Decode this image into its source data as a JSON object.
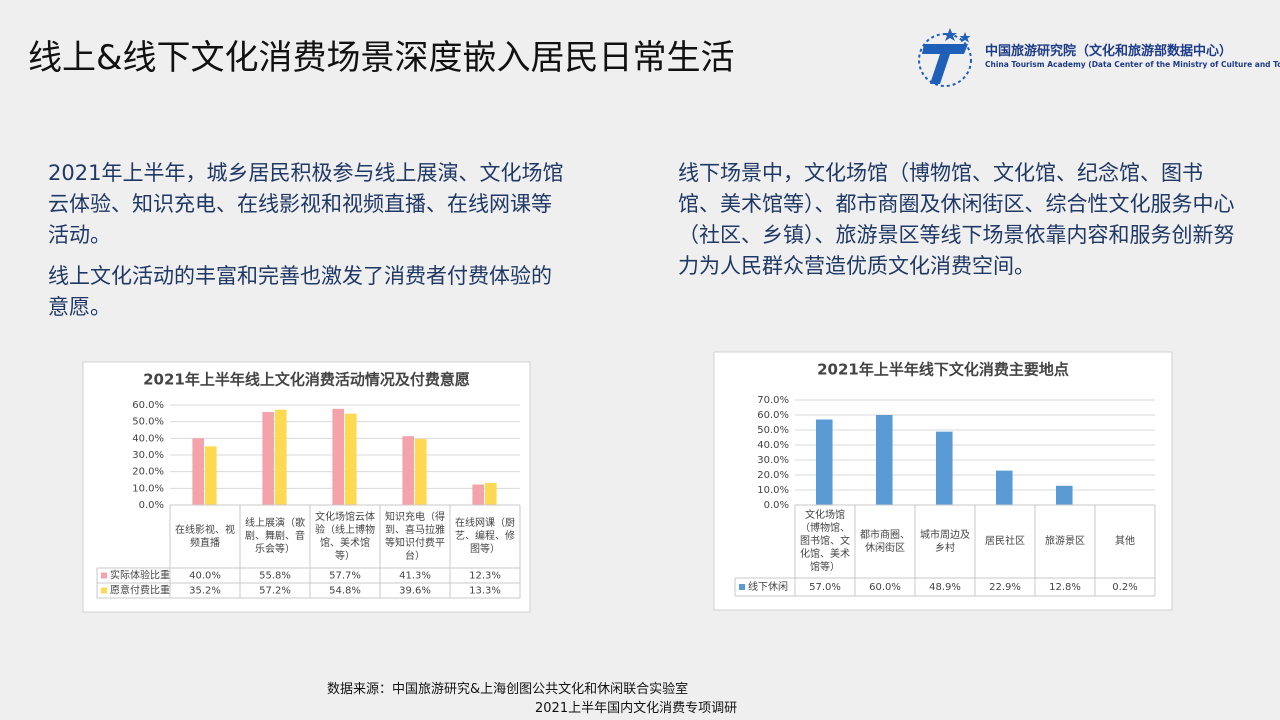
{
  "title": "线上&线下文化消费场景深度嵌入居民日常生活",
  "logo": {
    "name": "中国旅游研究院（文化和旅游部数据中心）",
    "english": "China Tourism Academy (Data Center of the Ministry of Culture and Tourism)"
  },
  "left_text": [
    "2021年上半年，城乡居民积极参与线上展演、文化场馆云体验、知识充电、在线影视和视频直播、在线网课等活动。",
    "线上文化活动的丰富和完善也激发了消费者付费体验的意愿。"
  ],
  "right_text": [
    "线下场景中，文化场馆（博物馆、文化馆、纪念馆、图书馆、美术馆等）、都市商圈及休闲街区、综合性文化服务中心（社区、乡镇）、旅游景区等线下场景依靠内容和服务创新努力为人民群众营造优质文化消费空间。"
  ],
  "chart_data": [
    {
      "type": "bar",
      "title": "2021年上半年线上文化消费活动情况及付费意愿",
      "categories": [
        "在线影视、视频直播",
        "线上展演（歌剧、舞剧、音乐会等）",
        "文化场馆云体验（线上博物馆、美术馆等）",
        "知识充电（得到、喜马拉雅等知识付费平台）",
        "在线网课（厨艺、编程、修图等）"
      ],
      "series": [
        {
          "name": "实际体验比重",
          "color": "#f5a3ab",
          "values": [
            40.0,
            55.8,
            57.7,
            41.3,
            12.3
          ],
          "value_labels": [
            "40.0%",
            "55.8%",
            "57.7%",
            "41.3%",
            "12.3%"
          ]
        },
        {
          "name": "愿意付费比重",
          "color": "#ffd951",
          "values": [
            35.2,
            57.2,
            54.8,
            39.6,
            13.3
          ],
          "value_labels": [
            "35.2%",
            "57.2%",
            "54.8%",
            "39.6%",
            "13.3%"
          ]
        }
      ],
      "ylim": [
        0,
        60
      ],
      "yticks": [
        {
          "value": 0,
          "label": "0.0%"
        },
        {
          "value": 10,
          "label": "10.0%"
        },
        {
          "value": 20,
          "label": "20.0%"
        },
        {
          "value": 30,
          "label": "30.0%"
        },
        {
          "value": 40,
          "label": "40.0%"
        },
        {
          "value": 50,
          "label": "50.0%"
        },
        {
          "value": 60,
          "label": "60.0%"
        }
      ],
      "grid": true
    },
    {
      "type": "bar",
      "title": "2021年上半年线下文化消费主要地点",
      "categories": [
        "文化场馆（博物馆、图书馆、文化馆、美术馆等）",
        "都市商圈、休闲街区",
        "城市周边及乡村",
        "居民社区",
        "旅游景区",
        "其他"
      ],
      "series": [
        {
          "name": "线下休闲",
          "color": "#5b9bd5",
          "values": [
            57.0,
            60.0,
            48.9,
            22.9,
            12.8,
            0.2
          ],
          "value_labels": [
            "57.0%",
            "60.0%",
            "48.9%",
            "22.9%",
            "12.8%",
            "0.2%"
          ]
        }
      ],
      "ylim": [
        0,
        70
      ],
      "yticks": [
        {
          "value": 0,
          "label": "0.0%"
        },
        {
          "value": 10,
          "label": "10.0%"
        },
        {
          "value": 20,
          "label": "20.0%"
        },
        {
          "value": 30,
          "label": "30.0%"
        },
        {
          "value": 40,
          "label": "40.0%"
        },
        {
          "value": 50,
          "label": "50.0%"
        },
        {
          "value": 60,
          "label": "60.0%"
        },
        {
          "value": 70,
          "label": "70.0%"
        }
      ],
      "grid": true
    }
  ],
  "source": [
    "数据来源：中国旅游研究&上海创图公共文化和休闲联合实验室",
    "2021上半年国内文化消费专项调研"
  ]
}
